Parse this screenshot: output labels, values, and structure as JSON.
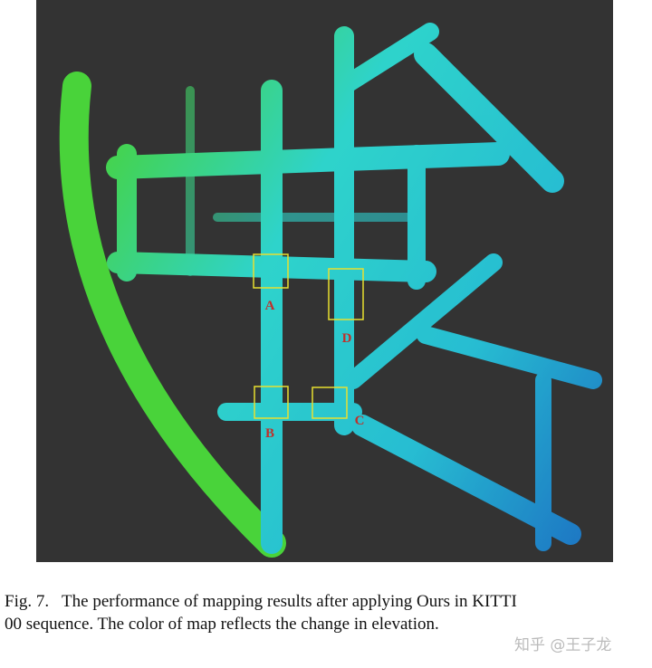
{
  "figure": {
    "region_labels": [
      "A",
      "B",
      "C",
      "D"
    ],
    "caption": {
      "label": "Fig. 7.",
      "lines": [
        "The performance of mapping results after applying Ours in KITTI",
        "00 sequence. The color of map reflects the change in elevation."
      ]
    },
    "watermark": "知乎 @王子龙"
  }
}
